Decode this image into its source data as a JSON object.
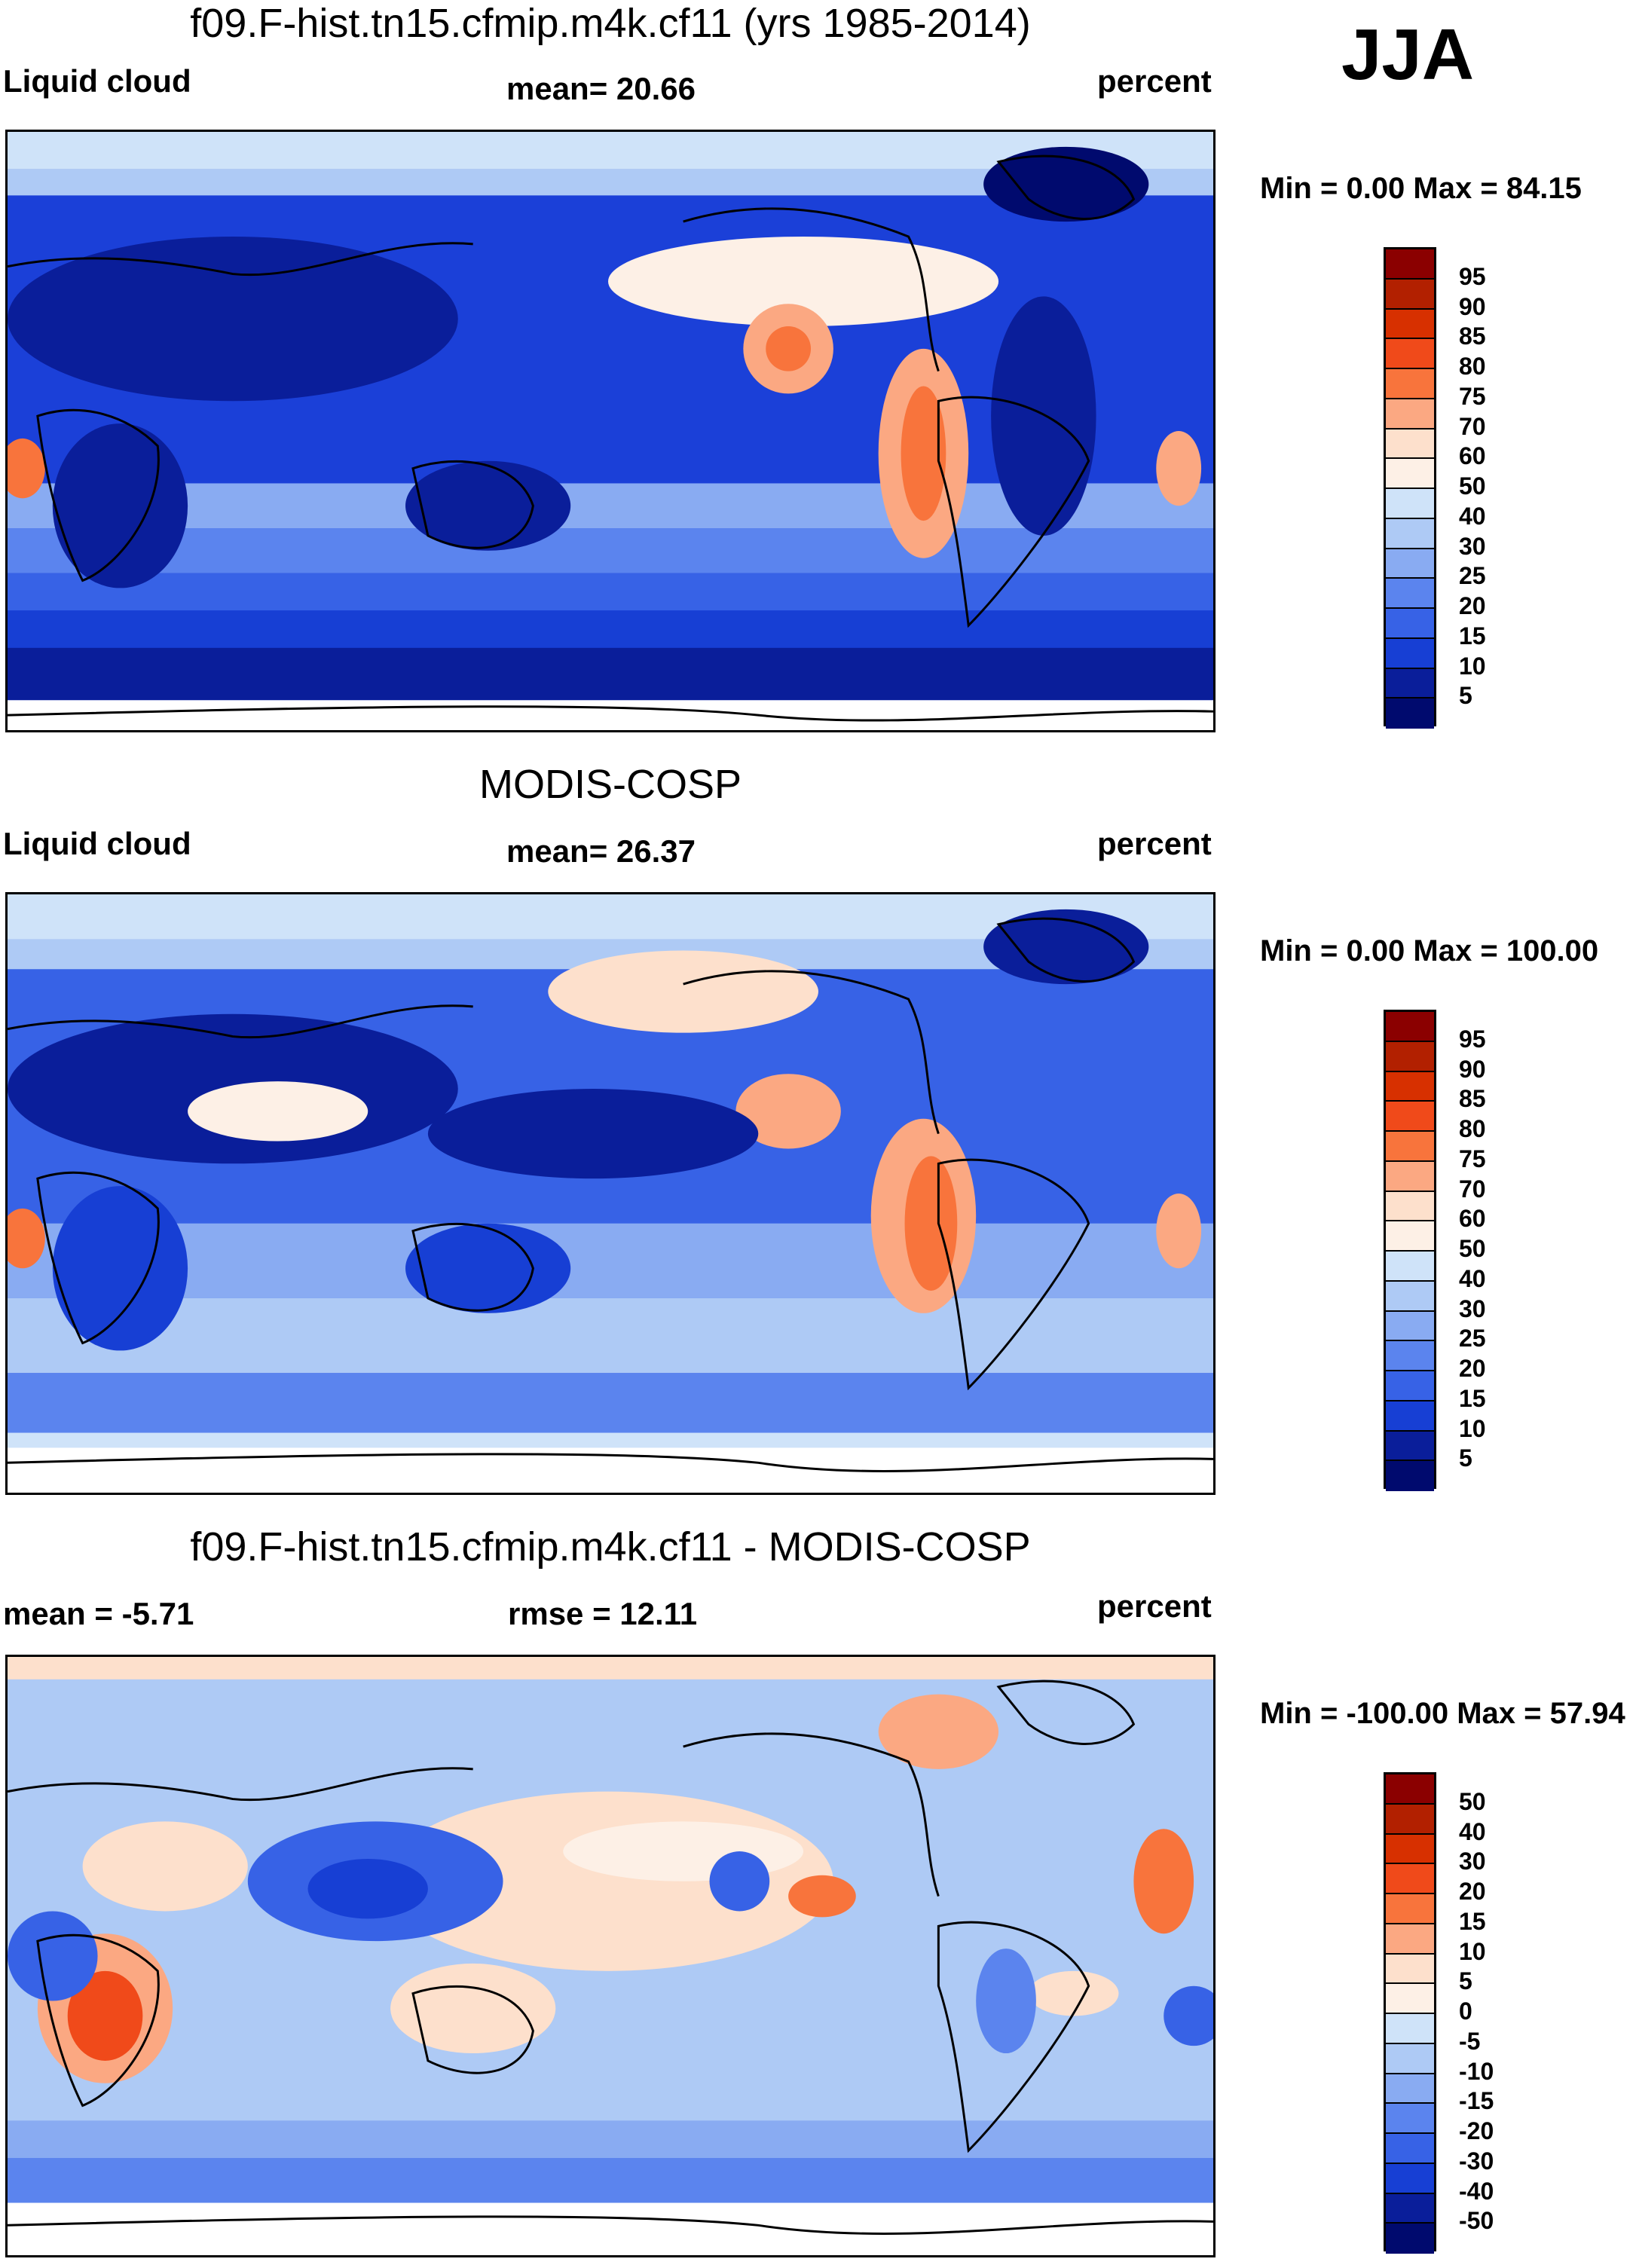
{
  "season": "JJA",
  "panels": [
    {
      "title": "f09.F-hist.tn15.cfmip.m4k.cf11 (yrs 1985-2014)",
      "left_label": "Liquid cloud",
      "center_label": "mean=  20.66",
      "right_label": "percent",
      "minmax": "Min =   0.00 Max =  84.15",
      "colorbar": {
        "levels": [
          "95",
          "90",
          "85",
          "80",
          "75",
          "70",
          "60",
          "50",
          "40",
          "30",
          "25",
          "20",
          "15",
          "10",
          "5"
        ],
        "colors": [
          "#8b0000",
          "#b22000",
          "#d73000",
          "#f04a1a",
          "#f8743c",
          "#fba882",
          "#fde0cc",
          "#fdf0e6",
          "#cfe3f9",
          "#aecaf5",
          "#89abf2",
          "#5b84ee",
          "#3762e6",
          "#173fd4",
          "#0a1e9a",
          "#000a6e"
        ]
      }
    },
    {
      "title": "MODIS-COSP",
      "left_label": "Liquid cloud",
      "center_label": "mean=  26.37",
      "right_label": "percent",
      "minmax": "Min =   0.00 Max = 100.00",
      "colorbar": {
        "levels": [
          "95",
          "90",
          "85",
          "80",
          "75",
          "70",
          "60",
          "50",
          "40",
          "30",
          "25",
          "20",
          "15",
          "10",
          "5"
        ],
        "colors": [
          "#8b0000",
          "#b22000",
          "#d73000",
          "#f04a1a",
          "#f8743c",
          "#fba882",
          "#fde0cc",
          "#fdf0e6",
          "#cfe3f9",
          "#aecaf5",
          "#89abf2",
          "#5b84ee",
          "#3762e6",
          "#173fd4",
          "#0a1e9a",
          "#000a6e"
        ]
      }
    },
    {
      "title": "f09.F-hist.tn15.cfmip.m4k.cf11 - MODIS-COSP",
      "left_label": "mean =  -5.71",
      "center_label": "rmse =  12.11",
      "right_label": "percent",
      "minmax": "Min = -100.00 Max =  57.94",
      "colorbar": {
        "levels": [
          "50",
          "40",
          "30",
          "20",
          "15",
          "10",
          "5",
          "0",
          "-5",
          "-10",
          "-15",
          "-20",
          "-30",
          "-40",
          "-50"
        ],
        "colors": [
          "#8b0000",
          "#b22000",
          "#d73000",
          "#f04a1a",
          "#f8743c",
          "#fba882",
          "#fde0cc",
          "#fdf0e6",
          "#cfe3f9",
          "#aecaf5",
          "#89abf2",
          "#5b84ee",
          "#3762e6",
          "#173fd4",
          "#0a1e9a",
          "#000a6e"
        ]
      }
    }
  ]
}
